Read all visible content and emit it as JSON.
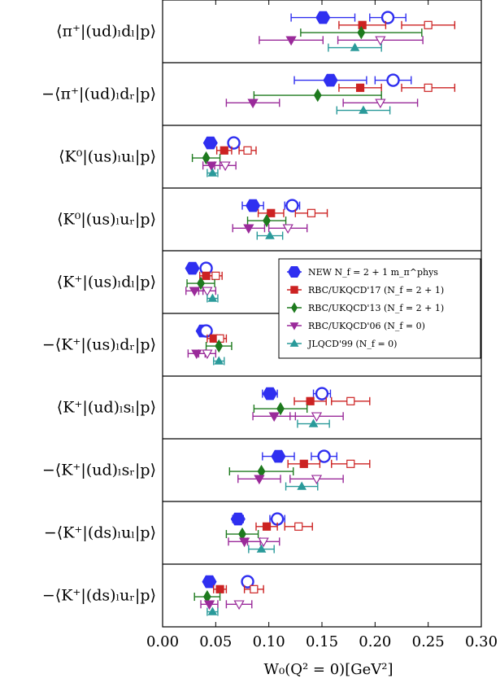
{
  "chart_data": {
    "type": "scatter",
    "orientation": "horizontal-errorbar",
    "xlabel": "W₀(Q² = 0)[GeV²]",
    "xlim": [
      0.0,
      0.3
    ],
    "xticks": [
      "0.00",
      "0.05",
      "0.10",
      "0.15",
      "0.20",
      "0.25",
      "0.30"
    ],
    "xtick_values": [
      0.0,
      0.05,
      0.1,
      0.15,
      0.2,
      0.25,
      0.3
    ],
    "categories": [
      "⟨π⁺|(ud)ₗdₗ|p⟩",
      "−⟨π⁺|(ud)ₗdᵣ|p⟩",
      "⟨K⁰|(us)ₗuₗ|p⟩",
      "⟨K⁰|(us)ₗuᵣ|p⟩",
      "⟨K⁺|(us)ₗdₗ|p⟩",
      "−⟨K⁺|(us)ₗdᵣ|p⟩",
      "⟨K⁺|(ud)ₗsₗ|p⟩",
      "−⟨K⁺|(ud)ₗsᵣ|p⟩",
      "−⟨K⁺|(ds)ₗuₗ|p⟩",
      "−⟨K⁺|(ds)ₗuᵣ|p⟩"
    ],
    "series": [
      {
        "name": "NEW N_f = 2+1 m_π^phys",
        "color": "#2f2ff0",
        "marker": "hexagon",
        "points": [
          {
            "x": 0.151,
            "xerr": 0.03,
            "x2": 0.212,
            "xerr2": 0.017
          },
          {
            "x": 0.158,
            "xerr": 0.034,
            "x2": 0.217,
            "xerr2": 0.017
          },
          {
            "x": 0.045,
            "xerr": 0.003,
            "x2": 0.067,
            "xerr2": 0.004
          },
          {
            "x": 0.085,
            "xerr": 0.01,
            "x2": 0.122,
            "xerr2": 0.007
          },
          {
            "x": 0.028,
            "xerr": 0.003,
            "x2": 0.041,
            "xerr2": 0.004
          },
          {
            "x": 0.038,
            "xerr": 0.003,
            "x2": 0.041,
            "xerr2": 0.004
          },
          {
            "x": 0.101,
            "xerr": 0.007,
            "x2": 0.15,
            "xerr2": 0.008
          },
          {
            "x": 0.109,
            "xerr": 0.015,
            "x2": 0.152,
            "xerr2": 0.012
          },
          {
            "x": 0.071,
            "xerr": 0.005,
            "x2": 0.108,
            "xerr2": 0.007
          },
          {
            "x": 0.044,
            "xerr": 0.003,
            "x2": 0.08,
            "xerr2": 0.004
          }
        ]
      },
      {
        "name": "RBC/UKQCD'17 (N_f = 2+1)",
        "color": "#cc2222",
        "marker": "square",
        "points": [
          {
            "x": 0.188,
            "xerr": 0.022,
            "x2": 0.25,
            "xerr2": 0.025
          },
          {
            "x": 0.186,
            "xerr": 0.02,
            "x2": 0.25,
            "xerr2": 0.025
          },
          {
            "x": 0.058,
            "xerr": 0.007,
            "x2": 0.08,
            "xerr2": 0.008
          },
          {
            "x": 0.102,
            "xerr": 0.012,
            "x2": 0.14,
            "xerr2": 0.015
          },
          {
            "x": 0.041,
            "xerr": 0.006,
            "x2": 0.05,
            "xerr2": 0.006
          },
          {
            "x": 0.048,
            "xerr": 0.006,
            "x2": 0.054,
            "xerr2": 0.006
          },
          {
            "x": 0.139,
            "xerr": 0.015,
            "x2": 0.177,
            "xerr2": 0.018
          },
          {
            "x": 0.133,
            "xerr": 0.015,
            "x2": 0.177,
            "xerr2": 0.018
          },
          {
            "x": 0.098,
            "xerr": 0.01,
            "x2": 0.128,
            "xerr2": 0.013
          },
          {
            "x": 0.054,
            "xerr": 0.006,
            "x2": 0.086,
            "xerr2": 0.009
          }
        ]
      },
      {
        "name": "RBC/UKQCD'13 (N_f = 2+1)",
        "color": "#1e7a1e",
        "marker": "diamond",
        "points": [
          {
            "x": 0.187,
            "xerr": 0.057
          },
          {
            "x": 0.146,
            "xerr": 0.06
          },
          {
            "x": 0.041,
            "xerr": 0.013
          },
          {
            "x": 0.098,
            "xerr": 0.018
          },
          {
            "x": 0.036,
            "xerr": 0.013
          },
          {
            "x": 0.053,
            "xerr": 0.012
          },
          {
            "x": 0.111,
            "xerr": 0.025
          },
          {
            "x": 0.093,
            "xerr": 0.03
          },
          {
            "x": 0.075,
            "xerr": 0.015
          },
          {
            "x": 0.042,
            "xerr": 0.012
          }
        ]
      },
      {
        "name": "RBC/UKQCD'06 (N_f = 0)",
        "color": "#9a2a9a",
        "marker": "triangle-down",
        "points": [
          {
            "x": 0.121,
            "xerr": 0.03,
            "x2": 0.205,
            "xerr2": 0.04
          },
          {
            "x": 0.085,
            "xerr": 0.025,
            "x2": 0.205,
            "xerr2": 0.035
          },
          {
            "x": 0.046,
            "xerr": 0.008,
            "x2": 0.059,
            "xerr2": 0.01
          },
          {
            "x": 0.081,
            "xerr": 0.015,
            "x2": 0.118,
            "xerr2": 0.018
          },
          {
            "x": 0.03,
            "xerr": 0.008,
            "x2": 0.042,
            "xerr2": 0.008
          },
          {
            "x": 0.032,
            "xerr": 0.008,
            "x2": 0.042,
            "xerr2": 0.008
          },
          {
            "x": 0.105,
            "xerr": 0.02,
            "x2": 0.145,
            "xerr2": 0.025
          },
          {
            "x": 0.091,
            "xerr": 0.02,
            "x2": 0.145,
            "xerr2": 0.025
          },
          {
            "x": 0.077,
            "xerr": 0.015,
            "x2": 0.095,
            "xerr2": 0.015
          },
          {
            "x": 0.044,
            "xerr": 0.008,
            "x2": 0.072,
            "xerr2": 0.012
          }
        ]
      },
      {
        "name": "JLQCD'99 (N_f = 0)",
        "color": "#2a9a9a",
        "marker": "triangle-up",
        "points": [
          {
            "x": 0.181,
            "xerr": 0.025
          },
          {
            "x": 0.189,
            "xerr": 0.025
          },
          {
            "x": 0.047,
            "xerr": 0.005
          },
          {
            "x": 0.101,
            "xerr": 0.012
          },
          {
            "x": 0.047,
            "xerr": 0.005
          },
          {
            "x": 0.053,
            "xerr": 0.005
          },
          {
            "x": 0.142,
            "xerr": 0.015
          },
          {
            "x": 0.131,
            "xerr": 0.015
          },
          {
            "x": 0.093,
            "xerr": 0.012
          },
          {
            "x": 0.047,
            "xerr": 0.005
          }
        ]
      }
    ],
    "legend": {
      "placement": "right-middle",
      "entries": [
        "NEW N_f = 2 + 1 m_π^phys",
        "RBC/UKQCD'17 (N_f = 2 + 1)",
        "RBC/UKQCD'13 (N_f = 2 + 1)",
        "RBC/UKQCD'06 (N_f = 0)",
        "JLQCD'99 (N_f = 0)"
      ]
    },
    "grid": false
  }
}
